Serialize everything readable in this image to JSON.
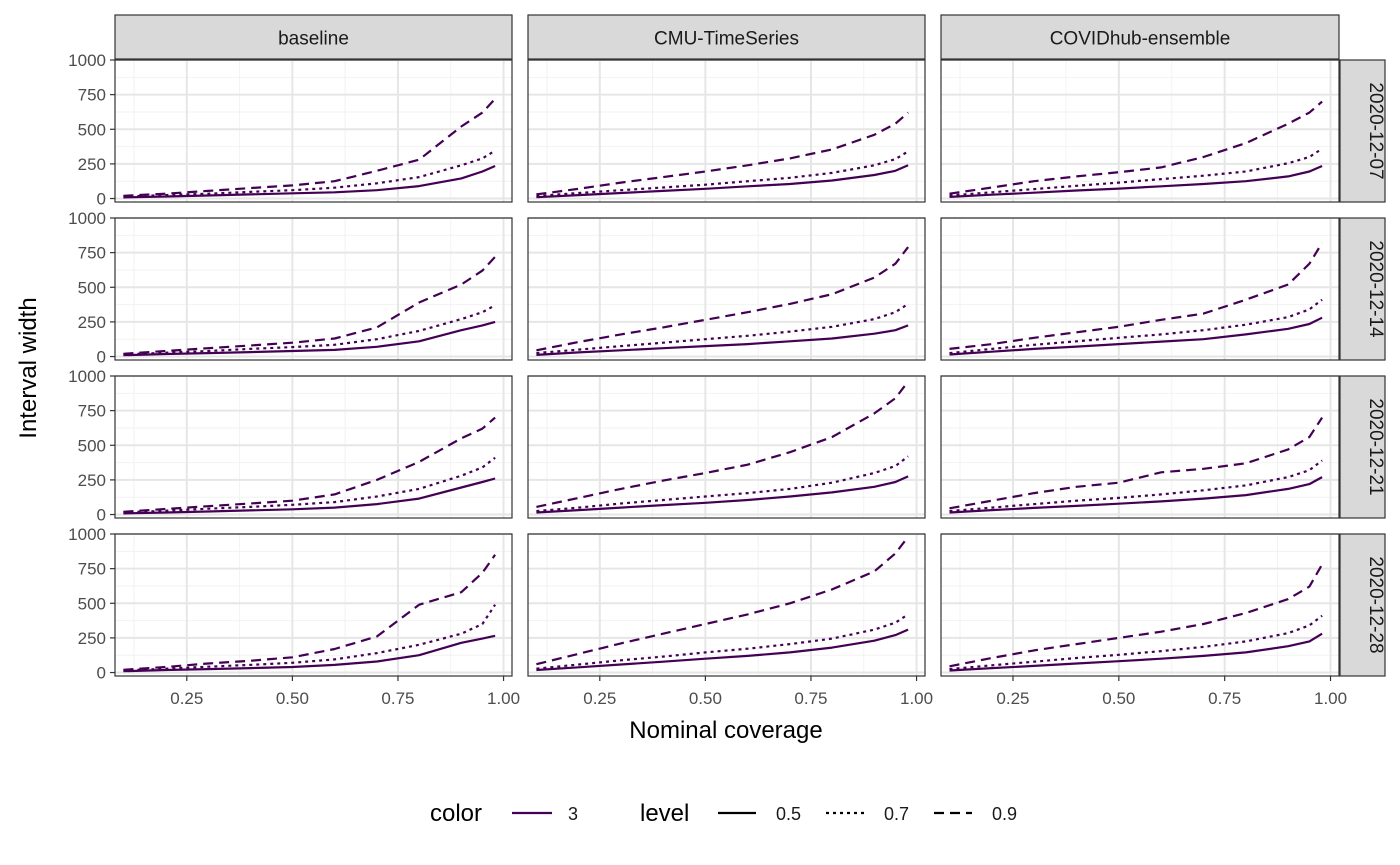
{
  "chart_data": {
    "type": "line",
    "facet_cols": [
      "baseline",
      "CMU-TimeSeries",
      "COVIDhub-ensemble"
    ],
    "facet_rows": [
      "2020-12-07",
      "2020-12-14",
      "2020-12-21",
      "2020-12-28"
    ],
    "xlabel": "Nominal coverage",
    "ylabel": "Interval width",
    "xlim": [
      0.08,
      1.02
    ],
    "ylim": [
      -25,
      1000
    ],
    "x_ticks": [
      0.25,
      0.5,
      0.75,
      1.0
    ],
    "x_tick_labels": [
      "0.25",
      "0.50",
      "0.75",
      "1.00"
    ],
    "y_ticks": [
      0,
      250,
      500,
      750,
      1000
    ],
    "y_tick_labels": [
      "0",
      "250",
      "500",
      "750",
      "1000"
    ],
    "grid": true,
    "x": [
      0.1,
      0.2,
      0.3,
      0.4,
      0.5,
      0.6,
      0.7,
      0.8,
      0.9,
      0.95,
      0.98
    ],
    "line_color": "#440154",
    "legend": {
      "position": "bottom",
      "color_title": "color",
      "color_entries": [
        {
          "label": "3",
          "color": "#440154"
        }
      ],
      "level_title": "level",
      "level_entries": [
        {
          "label": "0.5",
          "dash": "solid"
        },
        {
          "label": "0.7",
          "dash": "dotted"
        },
        {
          "label": "0.9",
          "dash": "dashed"
        }
      ]
    },
    "panels": [
      {
        "col": 0,
        "row": 0,
        "series": [
          {
            "level": "0.5",
            "values": [
              8,
              15,
              22,
              30,
              38,
              45,
              60,
              90,
              145,
              195,
              235
            ]
          },
          {
            "level": "0.7",
            "values": [
              15,
              25,
              35,
              48,
              60,
              78,
              110,
              155,
              240,
              290,
              345
            ]
          },
          {
            "level": "0.9",
            "values": [
              20,
              35,
              55,
              75,
              95,
              125,
              200,
              280,
              520,
              620,
              720
            ]
          }
        ]
      },
      {
        "col": 1,
        "row": 0,
        "series": [
          {
            "level": "0.5",
            "values": [
              10,
              25,
              40,
              55,
              70,
              88,
              105,
              130,
              170,
              200,
              240
            ]
          },
          {
            "level": "0.7",
            "values": [
              18,
              40,
              60,
              80,
              100,
              125,
              150,
              185,
              240,
              285,
              340
            ]
          },
          {
            "level": "0.9",
            "values": [
              30,
              70,
              115,
              155,
              195,
              240,
              290,
              355,
              460,
              540,
              620
            ]
          }
        ]
      },
      {
        "col": 2,
        "row": 0,
        "series": [
          {
            "level": "0.5",
            "values": [
              12,
              28,
              42,
              58,
              72,
              88,
              105,
              125,
              160,
              195,
              235
            ]
          },
          {
            "level": "0.7",
            "values": [
              22,
              45,
              68,
              92,
              115,
              140,
              165,
              195,
              255,
              300,
              360
            ]
          },
          {
            "level": "0.9",
            "values": [
              35,
              80,
              125,
              160,
              190,
              225,
              300,
              400,
              540,
              620,
              700
            ]
          }
        ]
      },
      {
        "col": 0,
        "row": 1,
        "series": [
          {
            "level": "0.5",
            "values": [
              10,
              18,
              25,
              32,
              40,
              48,
              70,
              110,
              190,
              225,
              250
            ]
          },
          {
            "level": "0.7",
            "values": [
              15,
              28,
              40,
              55,
              68,
              85,
              125,
              185,
              270,
              320,
              370
            ]
          },
          {
            "level": "0.9",
            "values": [
              20,
              40,
              60,
              80,
              100,
              130,
              210,
              390,
              520,
              620,
              720
            ]
          }
        ]
      },
      {
        "col": 1,
        "row": 1,
        "series": [
          {
            "level": "0.5",
            "values": [
              12,
              30,
              45,
              60,
              75,
              90,
              110,
              130,
              165,
              190,
              225
            ]
          },
          {
            "level": "0.7",
            "values": [
              25,
              50,
              75,
              100,
              125,
              150,
              180,
              215,
              270,
              320,
              380
            ]
          },
          {
            "level": "0.9",
            "values": [
              45,
              105,
              160,
              210,
              265,
              320,
              380,
              450,
              570,
              670,
              790
            ]
          }
        ]
      },
      {
        "col": 2,
        "row": 1,
        "series": [
          {
            "level": "0.5",
            "values": [
              15,
              35,
              55,
              72,
              90,
              108,
              125,
              160,
              200,
              235,
              280
            ]
          },
          {
            "level": "0.7",
            "values": [
              25,
              55,
              85,
              110,
              135,
              160,
              190,
              230,
              285,
              340,
              410
            ]
          },
          {
            "level": "0.9",
            "values": [
              55,
              90,
              135,
              175,
              215,
              265,
              310,
              410,
              520,
              670,
              820
            ]
          }
        ]
      },
      {
        "col": 0,
        "row": 2,
        "series": [
          {
            "level": "0.5",
            "values": [
              8,
              15,
              22,
              30,
              38,
              50,
              75,
              115,
              195,
              235,
              260
            ]
          },
          {
            "level": "0.7",
            "values": [
              15,
              28,
              42,
              55,
              70,
              90,
              130,
              185,
              280,
              340,
              410
            ]
          },
          {
            "level": "0.9",
            "values": [
              20,
              40,
              60,
              80,
              100,
              145,
              250,
              380,
              550,
              620,
              700
            ]
          }
        ]
      },
      {
        "col": 1,
        "row": 2,
        "series": [
          {
            "level": "0.5",
            "values": [
              15,
              32,
              50,
              68,
              85,
              105,
              130,
              160,
              200,
              235,
              275
            ]
          },
          {
            "level": "0.7",
            "values": [
              25,
              50,
              80,
              105,
              130,
              155,
              185,
              230,
              300,
              350,
              420
            ]
          },
          {
            "level": "0.9",
            "values": [
              55,
              120,
              185,
              245,
              300,
              360,
              450,
              560,
              730,
              840,
              960
            ]
          }
        ]
      },
      {
        "col": 2,
        "row": 2,
        "series": [
          {
            "level": "0.5",
            "values": [
              15,
              32,
              48,
              62,
              78,
              95,
              115,
              140,
              185,
              220,
              270
            ]
          },
          {
            "level": "0.7",
            "values": [
              25,
              50,
              75,
              100,
              120,
              145,
              175,
              210,
              270,
              320,
              390
            ]
          },
          {
            "level": "0.9",
            "values": [
              45,
              100,
              155,
              200,
              230,
              305,
              330,
              370,
              470,
              560,
              700
            ]
          }
        ]
      },
      {
        "col": 0,
        "row": 3,
        "series": [
          {
            "level": "0.5",
            "values": [
              10,
              18,
              25,
              32,
              40,
              55,
              80,
              125,
              215,
              245,
              265
            ]
          },
          {
            "level": "0.7",
            "values": [
              15,
              28,
              42,
              55,
              70,
              95,
              140,
              200,
              280,
              350,
              490
            ]
          },
          {
            "level": "0.9",
            "values": [
              20,
              40,
              65,
              85,
              110,
              170,
              260,
              490,
              580,
              720,
              850
            ]
          }
        ]
      },
      {
        "col": 1,
        "row": 3,
        "series": [
          {
            "level": "0.5",
            "values": [
              18,
              38,
              58,
              78,
              100,
              120,
              145,
              180,
              230,
              270,
              310
            ]
          },
          {
            "level": "0.7",
            "values": [
              28,
              58,
              88,
              115,
              145,
              172,
              205,
              245,
              310,
              360,
              420
            ]
          },
          {
            "level": "0.9",
            "values": [
              60,
              135,
              210,
              280,
              350,
              420,
              500,
              600,
              730,
              860,
              980
            ]
          }
        ]
      },
      {
        "col": 2,
        "row": 3,
        "series": [
          {
            "level": "0.5",
            "values": [
              15,
              32,
              48,
              65,
              82,
              100,
              120,
              145,
              190,
              225,
              280
            ]
          },
          {
            "level": "0.7",
            "values": [
              25,
              52,
              78,
              105,
              128,
              155,
              185,
              225,
              285,
              340,
              410
            ]
          },
          {
            "level": "0.9",
            "values": [
              45,
              105,
              160,
              205,
              250,
              295,
              350,
              430,
              530,
              620,
              780
            ]
          }
        ]
      }
    ]
  }
}
